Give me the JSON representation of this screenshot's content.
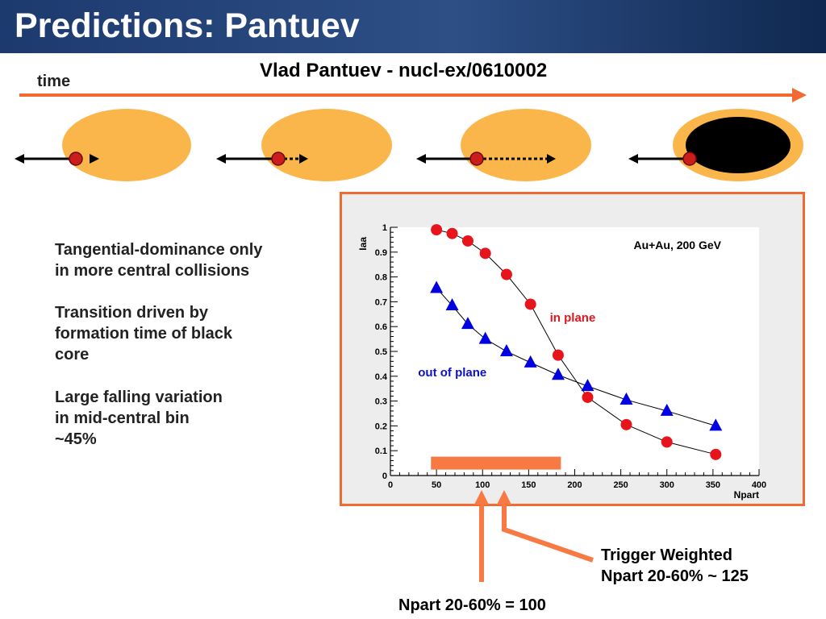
{
  "slide": {
    "title": "Predictions: Pantuev",
    "citation": "Vlad Pantuev - nucl-ex/0610002",
    "time_label": "time",
    "bullets": [
      "Tangential-dominance only\nin more central collisions",
      "Transition driven by\nformation time of black\ncore",
      "Large falling variation\nin mid-central bin\n      ~45%"
    ],
    "annotation_trigger": "Trigger Weighted\nNpart 20-60% ~ 125",
    "annotation_npart": "Npart 20-60% = 100"
  },
  "diagram": {
    "orange_color": "#fbb64b",
    "core_color": "#000000",
    "dot_color": "#cc1d1d",
    "arrow_color": "#f06a32"
  },
  "chart_data": {
    "type": "scatter",
    "title": "Au+Au, 200 GeV",
    "xlabel": "Npart",
    "ylabel": "Iaa",
    "xlim": [
      0,
      400
    ],
    "ylim": [
      0,
      1
    ],
    "xticks": [
      0,
      50,
      100,
      150,
      200,
      250,
      300,
      350,
      400
    ],
    "yticks": [
      0,
      0.1,
      0.2,
      0.3,
      0.4,
      0.5,
      0.6,
      0.7,
      0.8,
      0.9,
      1
    ],
    "series": [
      {
        "name": "in plane",
        "color": "#e8141b",
        "marker": "circle",
        "label_color": "#e8141b",
        "x": [
          50,
          67,
          84,
          103,
          126,
          152,
          182,
          214,
          256,
          300,
          353
        ],
        "y": [
          0.99,
          0.975,
          0.945,
          0.895,
          0.81,
          0.69,
          0.485,
          0.315,
          0.205,
          0.135,
          0.085
        ]
      },
      {
        "name": "out of plane",
        "color": "#0000e0",
        "marker": "triangle",
        "label_color": "#0b12c8",
        "x": [
          50,
          67,
          84,
          103,
          126,
          152,
          182,
          214,
          256,
          300,
          353
        ],
        "y": [
          0.755,
          0.685,
          0.61,
          0.55,
          0.5,
          0.455,
          0.405,
          0.36,
          0.305,
          0.26,
          0.2
        ]
      }
    ],
    "bar_highlight": {
      "color": "#f77a45",
      "x_range": [
        44,
        185
      ],
      "y": 0.05
    },
    "arrows": [
      {
        "x": 100
      },
      {
        "x": 125
      }
    ]
  }
}
